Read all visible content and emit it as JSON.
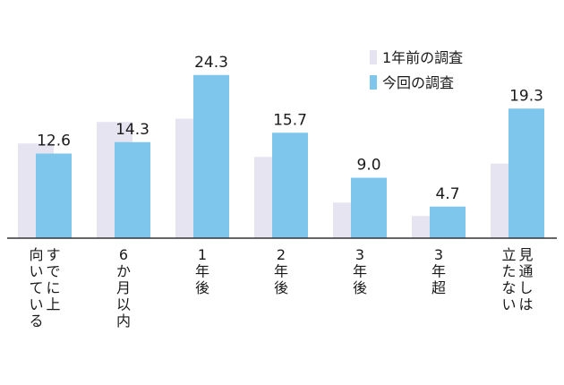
{
  "chart_data": {
    "type": "bar",
    "categories": [
      [
        "すでに上",
        "向いている"
      ],
      [
        "6か月以内"
      ],
      [
        "1年後"
      ],
      [
        "2年後"
      ],
      [
        "3年後"
      ],
      [
        "3年超"
      ],
      [
        "見通しは",
        "立たない"
      ]
    ],
    "series": [
      {
        "name": "1年前の調査",
        "color": "#e6e4f0",
        "values": [
          14.1,
          17.3,
          17.8,
          12.1,
          5.3,
          3.3,
          11.1
        ]
      },
      {
        "name": "今回の調査",
        "color": "#7fc6ec",
        "values": [
          12.6,
          14.3,
          24.3,
          15.7,
          9.0,
          4.7,
          19.3
        ],
        "labels": [
          "12.6",
          "14.3",
          "24.3",
          "15.7",
          "9.0",
          "4.7",
          "19.3"
        ]
      }
    ],
    "ylim": [
      0,
      28
    ],
    "legend": "top-right",
    "grid": false
  }
}
